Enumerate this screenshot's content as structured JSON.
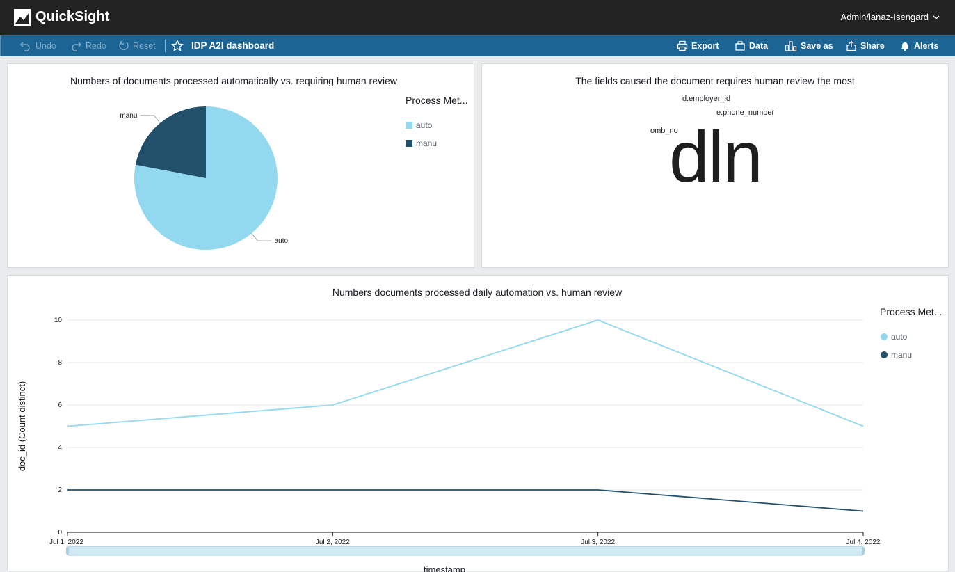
{
  "app": {
    "brand": "QuickSight",
    "user": "Admin/lanaz-Isengard"
  },
  "toolbar": {
    "undo_label": "Undo",
    "redo_label": "Redo",
    "reset_label": "Reset",
    "dashboard_title": "IDP A2I dashboard",
    "export_label": "Export",
    "data_label": "Data",
    "save_as_label": "Save as",
    "share_label": "Share",
    "alerts_label": "Alerts"
  },
  "colors": {
    "auto": "#92d8ee",
    "manu": "#22506b",
    "toolbar": "#1c6494"
  },
  "pie_panel": {
    "title": "Numbers of documents processed automatically vs. requiring human review",
    "legend_title": "Process Met...",
    "legend": [
      "auto",
      "manu"
    ]
  },
  "wordcloud_panel": {
    "title": "The fields caused the document requires human review the most",
    "words": [
      "d.employer_id",
      "e.phone_number",
      "omb_no",
      "dln"
    ]
  },
  "line_panel": {
    "title": "Numbers documents processed daily automation vs. human review",
    "legend_title": "Process Met...",
    "legend": [
      "auto",
      "manu"
    ]
  },
  "chart_data": [
    {
      "type": "pie",
      "title": "Numbers of documents processed automatically vs. requiring human review",
      "categories": [
        "auto",
        "manu"
      ],
      "values": [
        78,
        22
      ],
      "legend_title": "Process Met...",
      "legend_position": "right"
    },
    {
      "type": "line",
      "title": "Numbers documents processed daily automation vs. human review",
      "categories": [
        "Jul 1, 2022",
        "Jul 2, 2022",
        "Jul 3, 2022",
        "Jul 4, 2022"
      ],
      "series": [
        {
          "name": "auto",
          "values": [
            5,
            6,
            10,
            5
          ]
        },
        {
          "name": "manu",
          "values": [
            2,
            2,
            2,
            1
          ]
        }
      ],
      "ylabel": "doc_id (Count distinct)",
      "xlabel": "timestamp",
      "ylim": [
        0,
        10
      ],
      "yticks": [
        0,
        2,
        4,
        6,
        8,
        10
      ],
      "grid": true,
      "legend_title": "Process Met...",
      "legend_position": "right"
    }
  ]
}
